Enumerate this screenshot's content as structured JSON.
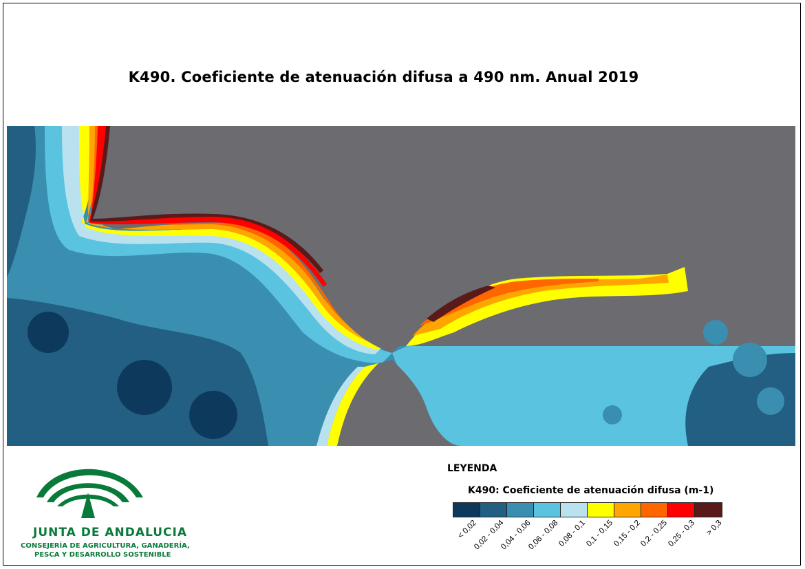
{
  "title": "K490. Coeficiente de atenuación difusa a 490 nm. Anual 2019",
  "legend": {
    "heading": "LEYENDA",
    "subtitle": "K490: Coeficiente de atenuación difusa (m-1)",
    "classes": [
      {
        "label": "< 0,02",
        "color": "#0d3a5c"
      },
      {
        "label": "0,02 - 0,04",
        "color": "#225f82"
      },
      {
        "label": "0,04 - 0,06",
        "color": "#3a8fb0"
      },
      {
        "label": "0,06 - 0,08",
        "color": "#5ac3e0"
      },
      {
        "label": "0,08 - 0,1",
        "color": "#b9e2ee"
      },
      {
        "label": "0,1 - 0,15",
        "color": "#ffff00"
      },
      {
        "label": "0,15 - 0,2",
        "color": "#ffa500"
      },
      {
        "label": "0,2 - 0,25",
        "color": "#ff6600"
      },
      {
        "label": "0,25 - 0,3",
        "color": "#ff0000"
      },
      {
        "label": "> 0,3",
        "color": "#5a1a1a"
      }
    ]
  },
  "land_color": "#6b6b70",
  "logo": {
    "name": "JUNTA DE ANDALUCIA",
    "line1": "CONSEJERÍA DE AGRICULTURA, GANADERÍA,",
    "line2": "PESCA Y DESARROLLO SOSTENIBLE",
    "brand_color": "#0a7a3a"
  }
}
